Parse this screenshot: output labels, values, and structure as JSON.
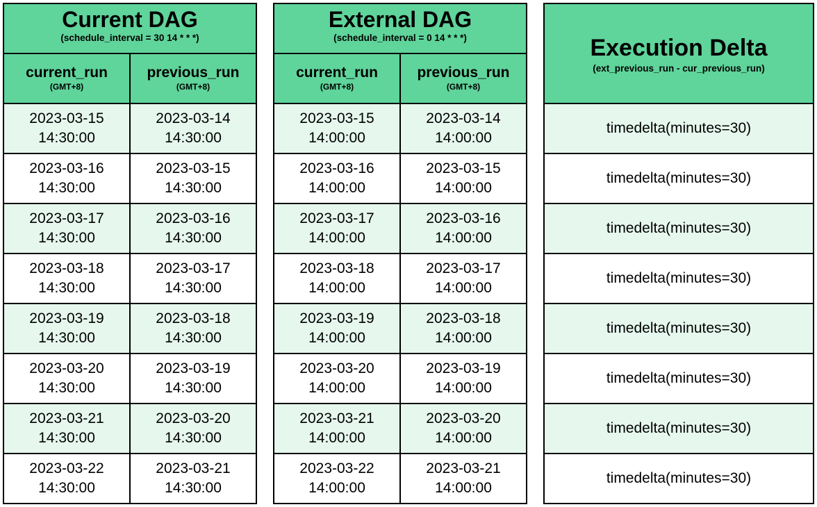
{
  "current_dag": {
    "title": "Current DAG",
    "subtitle": "(schedule_interval = 30 14 * * *)",
    "columns": [
      {
        "label": "current_run",
        "tz": "(GMT+8)"
      },
      {
        "label": "previous_run",
        "tz": "(GMT+8)"
      }
    ],
    "rows": [
      [
        {
          "date": "2023-03-15",
          "time": "14:30:00"
        },
        {
          "date": "2023-03-14",
          "time": "14:30:00"
        }
      ],
      [
        {
          "date": "2023-03-16",
          "time": "14:30:00"
        },
        {
          "date": "2023-03-15",
          "time": "14:30:00"
        }
      ],
      [
        {
          "date": "2023-03-17",
          "time": "14:30:00"
        },
        {
          "date": "2023-03-16",
          "time": "14:30:00"
        }
      ],
      [
        {
          "date": "2023-03-18",
          "time": "14:30:00"
        },
        {
          "date": "2023-03-17",
          "time": "14:30:00"
        }
      ],
      [
        {
          "date": "2023-03-19",
          "time": "14:30:00"
        },
        {
          "date": "2023-03-18",
          "time": "14:30:00"
        }
      ],
      [
        {
          "date": "2023-03-20",
          "time": "14:30:00"
        },
        {
          "date": "2023-03-19",
          "time": "14:30:00"
        }
      ],
      [
        {
          "date": "2023-03-21",
          "time": "14:30:00"
        },
        {
          "date": "2023-03-20",
          "time": "14:30:00"
        }
      ],
      [
        {
          "date": "2023-03-22",
          "time": "14:30:00"
        },
        {
          "date": "2023-03-21",
          "time": "14:30:00"
        }
      ]
    ]
  },
  "external_dag": {
    "title": "External DAG",
    "subtitle": "(schedule_interval = 0 14 * * *)",
    "columns": [
      {
        "label": "current_run",
        "tz": "(GMT+8)"
      },
      {
        "label": "previous_run",
        "tz": "(GMT+8)"
      }
    ],
    "rows": [
      [
        {
          "date": "2023-03-15",
          "time": "14:00:00"
        },
        {
          "date": "2023-03-14",
          "time": "14:00:00"
        }
      ],
      [
        {
          "date": "2023-03-16",
          "time": "14:00:00"
        },
        {
          "date": "2023-03-15",
          "time": "14:00:00"
        }
      ],
      [
        {
          "date": "2023-03-17",
          "time": "14:00:00"
        },
        {
          "date": "2023-03-16",
          "time": "14:00:00"
        }
      ],
      [
        {
          "date": "2023-03-18",
          "time": "14:00:00"
        },
        {
          "date": "2023-03-17",
          "time": "14:00:00"
        }
      ],
      [
        {
          "date": "2023-03-19",
          "time": "14:00:00"
        },
        {
          "date": "2023-03-18",
          "time": "14:00:00"
        }
      ],
      [
        {
          "date": "2023-03-20",
          "time": "14:00:00"
        },
        {
          "date": "2023-03-19",
          "time": "14:00:00"
        }
      ],
      [
        {
          "date": "2023-03-21",
          "time": "14:00:00"
        },
        {
          "date": "2023-03-20",
          "time": "14:00:00"
        }
      ],
      [
        {
          "date": "2023-03-22",
          "time": "14:00:00"
        },
        {
          "date": "2023-03-21",
          "time": "14:00:00"
        }
      ]
    ]
  },
  "execution_delta": {
    "title": "Execution Delta",
    "subtitle": "(ext_previous_run - cur_previous_run)",
    "rows": [
      "timedelta(minutes=30)",
      "timedelta(minutes=30)",
      "timedelta(minutes=30)",
      "timedelta(minutes=30)",
      "timedelta(minutes=30)",
      "timedelta(minutes=30)",
      "timedelta(minutes=30)",
      "timedelta(minutes=30)"
    ]
  },
  "colors": {
    "header": "#5fd49b",
    "alt_row": "#e6f7ee",
    "border": "#000000"
  }
}
